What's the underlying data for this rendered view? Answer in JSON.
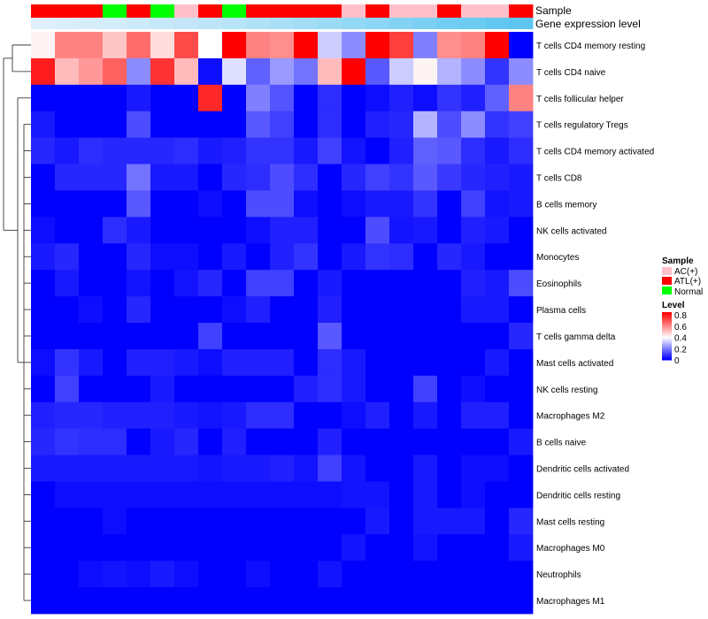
{
  "chart_data": {
    "type": "heatmap",
    "annotation_tracks": [
      "Sample",
      "Gene expression level"
    ],
    "sample_groups": [
      "ATL(+)",
      "ATL(+)",
      "ATL(+)",
      "Normal",
      "ATL(+)",
      "Normal",
      "AC(+)",
      "ATL(+)",
      "Normal",
      "ATL(+)",
      "ATL(+)",
      "ATL(+)",
      "ATL(+)",
      "AC(+)",
      "ATL(+)",
      "AC(+)",
      "AC(+)",
      "ATL(+)",
      "AC(+)",
      "AC(+)",
      "ATL(+)"
    ],
    "expression_levels": [
      0.15,
      0.18,
      0.2,
      0.22,
      0.25,
      0.28,
      0.3,
      0.33,
      0.36,
      0.4,
      0.44,
      0.48,
      0.52,
      0.56,
      0.6,
      0.65,
      0.7,
      0.74,
      0.78,
      0.82,
      0.86
    ],
    "rows": [
      "T cells CD4 memory resting",
      "T cells CD4 naive",
      "T cells follicular helper",
      "T cells regulatory  Tregs",
      "T cells CD4 memory activated",
      "T cells CD8",
      "B cells memory",
      "NK cells activated",
      "Monocytes",
      "Eosinophils",
      "Plasma cells",
      "T cells gamma delta",
      "Mast cells activated",
      "NK cells resting",
      "Macrophages M2",
      "B cells naive",
      "Dendritic cells activated",
      "Dendritic cells resting",
      "Mast cells resting",
      "Macrophages M0",
      "Neutrophils",
      "Macrophages M1"
    ],
    "values": [
      [
        0.42,
        0.62,
        0.62,
        0.5,
        0.66,
        0.46,
        0.72,
        0.4,
        0.85,
        0.62,
        0.6,
        0.85,
        0.32,
        0.22,
        0.85,
        0.74,
        0.2,
        0.6,
        0.62,
        0.85,
        0.0
      ],
      [
        0.8,
        0.52,
        0.58,
        0.68,
        0.22,
        0.76,
        0.52,
        0.02,
        0.35,
        0.15,
        0.24,
        0.18,
        0.52,
        0.85,
        0.14,
        0.32,
        0.42,
        0.28,
        0.22,
        0.08,
        0.22
      ],
      [
        0.0,
        0.0,
        0.0,
        0.0,
        0.04,
        0.0,
        0.0,
        0.78,
        0.0,
        0.2,
        0.13,
        0.0,
        0.07,
        0.0,
        0.02,
        0.05,
        0.02,
        0.08,
        0.05,
        0.15,
        0.62
      ],
      [
        0.04,
        0.0,
        0.0,
        0.0,
        0.12,
        0.0,
        0.0,
        0.0,
        0.0,
        0.14,
        0.1,
        0.0,
        0.07,
        0.0,
        0.05,
        0.06,
        0.28,
        0.12,
        0.22,
        0.08,
        0.1
      ],
      [
        0.06,
        0.04,
        0.07,
        0.06,
        0.06,
        0.06,
        0.07,
        0.04,
        0.05,
        0.08,
        0.08,
        0.04,
        0.1,
        0.03,
        0.0,
        0.05,
        0.15,
        0.14,
        0.07,
        0.04,
        0.07
      ],
      [
        0.0,
        0.06,
        0.06,
        0.06,
        0.18,
        0.04,
        0.04,
        0.0,
        0.06,
        0.07,
        0.12,
        0.07,
        0.0,
        0.06,
        0.1,
        0.08,
        0.14,
        0.09,
        0.06,
        0.05,
        0.04
      ],
      [
        0.0,
        0.0,
        0.0,
        0.0,
        0.14,
        0.0,
        0.0,
        0.02,
        0.0,
        0.12,
        0.12,
        0.02,
        0.0,
        0.02,
        0.04,
        0.04,
        0.08,
        0.0,
        0.1,
        0.03,
        0.04
      ],
      [
        0.02,
        0.0,
        0.0,
        0.07,
        0.04,
        0.0,
        0.0,
        0.0,
        0.0,
        0.02,
        0.05,
        0.05,
        0.0,
        0.0,
        0.12,
        0.03,
        0.04,
        0.0,
        0.05,
        0.04,
        0.0
      ],
      [
        0.04,
        0.06,
        0.0,
        0.0,
        0.06,
        0.02,
        0.02,
        0.0,
        0.04,
        0.0,
        0.05,
        0.08,
        0.0,
        0.04,
        0.08,
        0.07,
        0.0,
        0.06,
        0.04,
        0.0,
        0.0
      ],
      [
        0.0,
        0.04,
        0.0,
        0.0,
        0.03,
        0.0,
        0.03,
        0.06,
        0.0,
        0.1,
        0.1,
        0.0,
        0.04,
        0.0,
        0.0,
        0.0,
        0.0,
        0.0,
        0.05,
        0.04,
        0.12
      ],
      [
        0.0,
        0.0,
        0.02,
        0.0,
        0.06,
        0.0,
        0.0,
        0.0,
        0.02,
        0.05,
        0.0,
        0.0,
        0.05,
        0.0,
        0.0,
        0.0,
        0.0,
        0.0,
        0.04,
        0.04,
        0.0
      ],
      [
        0.0,
        0.0,
        0.0,
        0.0,
        0.0,
        0.0,
        0.0,
        0.1,
        0.0,
        0.0,
        0.0,
        0.0,
        0.14,
        0.0,
        0.0,
        0.0,
        0.0,
        0.0,
        0.0,
        0.0,
        0.06
      ],
      [
        0.02,
        0.08,
        0.04,
        0.0,
        0.05,
        0.05,
        0.04,
        0.02,
        0.05,
        0.05,
        0.05,
        0.0,
        0.07,
        0.04,
        0.0,
        0.0,
        0.0,
        0.0,
        0.0,
        0.04,
        0.0
      ],
      [
        0.0,
        0.1,
        0.0,
        0.0,
        0.0,
        0.04,
        0.0,
        0.0,
        0.0,
        0.0,
        0.0,
        0.05,
        0.07,
        0.04,
        0.0,
        0.0,
        0.1,
        0.0,
        0.02,
        0.0,
        0.0
      ],
      [
        0.05,
        0.06,
        0.06,
        0.05,
        0.05,
        0.05,
        0.04,
        0.03,
        0.04,
        0.07,
        0.07,
        0.0,
        0.0,
        0.02,
        0.05,
        0.0,
        0.04,
        0.0,
        0.05,
        0.05,
        0.0
      ],
      [
        0.06,
        0.08,
        0.07,
        0.07,
        0.0,
        0.04,
        0.06,
        0.0,
        0.05,
        0.0,
        0.0,
        0.0,
        0.05,
        0.0,
        0.0,
        0.0,
        0.0,
        0.0,
        0.0,
        0.0,
        0.04
      ],
      [
        0.04,
        0.04,
        0.04,
        0.04,
        0.04,
        0.04,
        0.04,
        0.03,
        0.04,
        0.04,
        0.05,
        0.03,
        0.1,
        0.03,
        0.0,
        0.0,
        0.04,
        0.0,
        0.02,
        0.02,
        0.0
      ],
      [
        0.0,
        0.02,
        0.02,
        0.02,
        0.02,
        0.02,
        0.02,
        0.02,
        0.02,
        0.02,
        0.02,
        0.02,
        0.02,
        0.03,
        0.03,
        0.0,
        0.04,
        0.0,
        0.02,
        0.0,
        0.0
      ],
      [
        0.0,
        0.0,
        0.0,
        0.02,
        0.0,
        0.0,
        0.0,
        0.0,
        0.0,
        0.0,
        0.0,
        0.0,
        0.0,
        0.0,
        0.04,
        0.0,
        0.04,
        0.04,
        0.04,
        0.0,
        0.06
      ],
      [
        0.0,
        0.0,
        0.0,
        0.0,
        0.0,
        0.0,
        0.0,
        0.0,
        0.0,
        0.0,
        0.0,
        0.0,
        0.0,
        0.03,
        0.0,
        0.0,
        0.03,
        0.0,
        0.0,
        0.0,
        0.04
      ],
      [
        0.0,
        0.0,
        0.02,
        0.03,
        0.02,
        0.04,
        0.02,
        0.0,
        0.0,
        0.02,
        0.0,
        0.0,
        0.03,
        0.0,
        0.0,
        0.0,
        0.0,
        0.0,
        0.0,
        0.0,
        0.0
      ],
      [
        0.0,
        0.0,
        0.0,
        0.0,
        0.0,
        0.0,
        0.0,
        0.0,
        0.0,
        0.0,
        0.0,
        0.0,
        0.0,
        0.0,
        0.0,
        0.0,
        0.0,
        0.0,
        0.0,
        0.0,
        0.0
      ]
    ],
    "legend": {
      "sample_title": "Sample",
      "sample_items": [
        {
          "label": "AC(+)",
          "color": "#ffc0cb"
        },
        {
          "label": "ATL(+)",
          "color": "#ff0000"
        },
        {
          "label": "Normal",
          "color": "#00ff00"
        }
      ],
      "level_title": "Level",
      "level_ticks": [
        "0.8",
        "0.6",
        "0.4",
        "0.2",
        "0"
      ],
      "level_range": [
        0,
        0.85
      ]
    },
    "color_scale": {
      "low": "#0000ff",
      "mid": "#ffffff",
      "high": "#ff0000",
      "midpoint": 0.4,
      "max": 0.85
    },
    "expression_scale": {
      "low": "#dff0fa",
      "high": "#5cc6f0"
    }
  }
}
